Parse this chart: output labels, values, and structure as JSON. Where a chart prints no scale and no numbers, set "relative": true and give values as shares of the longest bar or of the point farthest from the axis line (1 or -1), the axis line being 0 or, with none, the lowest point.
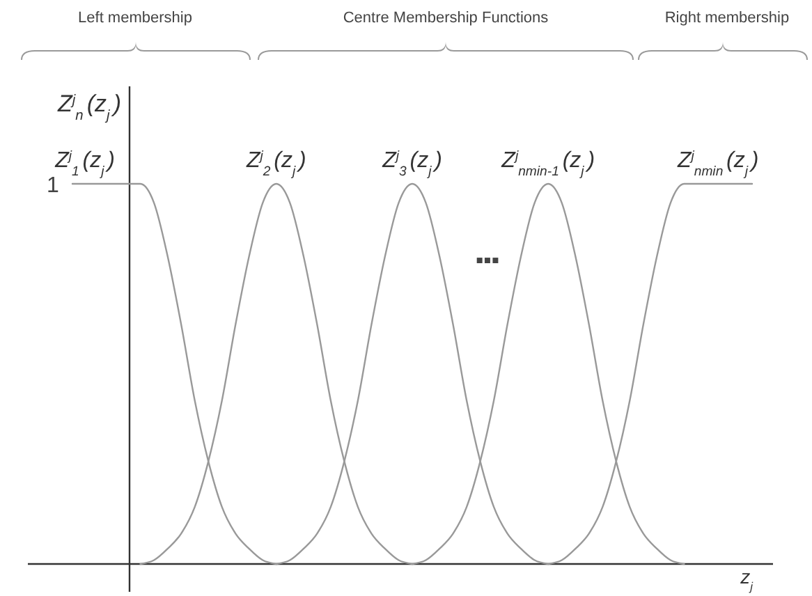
{
  "chart_data": {
    "type": "line",
    "relative": true,
    "ylabel": "Z$^{j}$$_{n}$(z$_{j}$)",
    "xlabel": "z$_{j}$",
    "categories": [
      null,
      null,
      null,
      null,
      null,
      null,
      null,
      null,
      null,
      null,
      null,
      null,
      null,
      null,
      null,
      null,
      null,
      null,
      null,
      null,
      null,
      null,
      null,
      null,
      null,
      null,
      null,
      null,
      null,
      null,
      null,
      null,
      null,
      null,
      null,
      null,
      null,
      null,
      null,
      null,
      null,
      null,
      null,
      null,
      null,
      null,
      null,
      null,
      null,
      null,
      null
    ],
    "series": [
      {
        "name": "Z$^{j}$$_{1}$(z$_{j}$)",
        "color": "#999999",
        "values": [
          1,
          1,
          1,
          1,
          1,
          1,
          0.95,
          0.81,
          0.63,
          0.43,
          0.27,
          0.15,
          0.08,
          0.04,
          0.01,
          0,
          null,
          null,
          null,
          null,
          null,
          null,
          null,
          null,
          null,
          null,
          null,
          null,
          null,
          null,
          null,
          null,
          null,
          null,
          null,
          null,
          null,
          null,
          null,
          null,
          null,
          null,
          null,
          null,
          null,
          null,
          null,
          null,
          null,
          null,
          null
        ]
      },
      {
        "name": "Z$^{j}$$_{2}$(z$_{j}$)",
        "color": "#999999",
        "values": [
          null,
          null,
          null,
          null,
          null,
          0,
          0.01,
          0.04,
          0.08,
          0.15,
          0.27,
          0.43,
          0.63,
          0.81,
          0.95,
          1,
          0.95,
          0.81,
          0.63,
          0.43,
          0.27,
          0.15,
          0.08,
          0.04,
          0.01,
          0,
          null,
          null,
          null,
          null,
          null,
          null,
          null,
          null,
          null,
          null,
          null,
          null,
          null,
          null,
          null,
          null,
          null,
          null,
          null,
          null,
          null,
          null,
          null,
          null,
          null
        ]
      },
      {
        "name": "Z$^{j}$$_{3}$(z$_{j}$)",
        "color": "#999999",
        "values": [
          null,
          null,
          null,
          null,
          null,
          null,
          null,
          null,
          null,
          null,
          null,
          null,
          null,
          null,
          null,
          0,
          0.01,
          0.04,
          0.08,
          0.15,
          0.27,
          0.43,
          0.63,
          0.81,
          0.95,
          1,
          0.95,
          0.81,
          0.63,
          0.43,
          0.27,
          0.15,
          0.08,
          0.04,
          0.01,
          0,
          null,
          null,
          null,
          null,
          null,
          null,
          null,
          null,
          null,
          null,
          null,
          null,
          null,
          null,
          null
        ]
      },
      {
        "name": "Z$^{j}$$_{nmin-1}$(z$_{j}$)",
        "color": "#999999",
        "values": [
          null,
          null,
          null,
          null,
          null,
          null,
          null,
          null,
          null,
          null,
          null,
          null,
          null,
          null,
          null,
          null,
          null,
          null,
          null,
          null,
          null,
          null,
          null,
          null,
          null,
          0,
          0.01,
          0.04,
          0.08,
          0.15,
          0.27,
          0.43,
          0.63,
          0.81,
          0.95,
          1,
          0.95,
          0.81,
          0.63,
          0.43,
          0.27,
          0.15,
          0.08,
          0.04,
          0.01,
          0,
          null,
          null,
          null,
          null,
          null
        ]
      },
      {
        "name": "Z$^{j}$$_{nmin}$(z$_{j}$)",
        "color": "#999999",
        "values": [
          null,
          null,
          null,
          null,
          null,
          null,
          null,
          null,
          null,
          null,
          null,
          null,
          null,
          null,
          null,
          null,
          null,
          null,
          null,
          null,
          null,
          null,
          null,
          null,
          null,
          null,
          null,
          null,
          null,
          null,
          null,
          null,
          null,
          null,
          null,
          0,
          0.01,
          0.04,
          0.08,
          0.15,
          0.27,
          0.43,
          0.63,
          0.81,
          0.95,
          1,
          1,
          1,
          1,
          1,
          1
        ]
      }
    ],
    "annotations": [
      "1",
      "Left membership",
      "Centre Membership Functions",
      "Right membership",
      "▪▪▪"
    ]
  }
}
